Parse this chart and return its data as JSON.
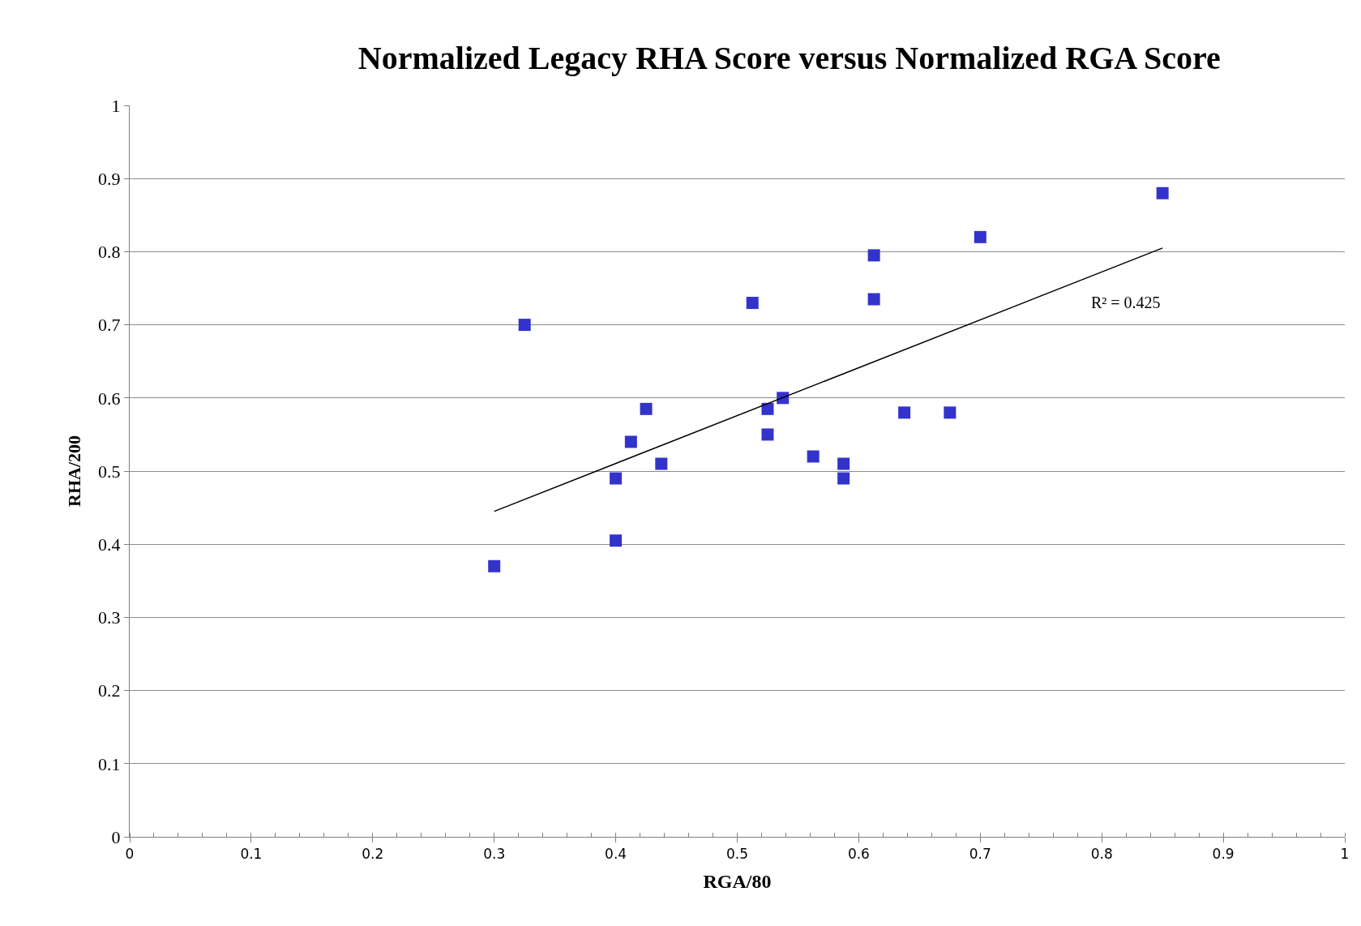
{
  "chart_data": {
    "type": "scatter",
    "title": "Normalized Legacy RHA Score versus Normalized RGA Score",
    "xlabel": "RGA/80",
    "ylabel": "RHA/200",
    "x": [
      0.3,
      0.325,
      0.4,
      0.4,
      0.4125,
      0.425,
      0.4375,
      0.5125,
      0.525,
      0.525,
      0.5375,
      0.5625,
      0.5875,
      0.5875,
      0.6125,
      0.6125,
      0.6375,
      0.675,
      0.7,
      0.85
    ],
    "series": [
      {
        "color": "#3333cc",
        "marker": "square",
        "values": [
          0.37,
          0.7,
          0.405,
          0.49,
          0.54,
          0.585,
          0.51,
          0.73,
          0.585,
          0.55,
          0.6,
          0.52,
          0.51,
          0.49,
          0.795,
          0.735,
          0.58,
          0.58,
          0.82,
          0.88
        ]
      },
      {
        "type": "line",
        "color": "#000000",
        "marker": "none",
        "line_style": "solid",
        "x": [
          0.3,
          0.85
        ],
        "values": [
          0.445,
          0.805
        ]
      }
    ],
    "annotations": [
      "R² = 0.425"
    ],
    "xlim": [
      0,
      1
    ],
    "ylim": [
      0,
      1
    ],
    "xticks": [
      0,
      0.1,
      0.2,
      0.3,
      0.4,
      0.5,
      0.6,
      0.7,
      0.8,
      0.9,
      1
    ],
    "yticks": [
      0,
      0.1,
      0.2,
      0.3,
      0.4,
      0.5,
      0.6,
      0.7,
      0.8,
      0.9,
      1
    ],
    "grid": "y",
    "legend": false
  }
}
